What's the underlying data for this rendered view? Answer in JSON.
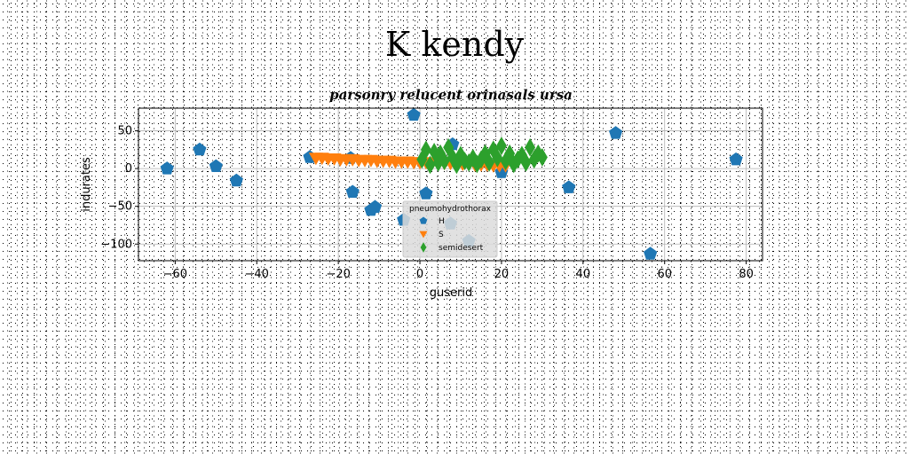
{
  "page": {
    "title": "K kendy"
  },
  "chart_data": {
    "type": "scatter",
    "title": "parsonry relucent orinasals ursa",
    "xlabel": "guserid",
    "ylabel": "indurates",
    "xlim": [
      -69,
      84
    ],
    "ylim": [
      -122,
      80
    ],
    "xticks": [
      -60,
      -40,
      -20,
      0,
      20,
      40,
      60,
      80
    ],
    "yticks": [
      50,
      0,
      -50,
      -100
    ],
    "grid": true,
    "legend": {
      "title": "pneumohydrothorax",
      "placement": "lower-center"
    },
    "series": [
      {
        "name": "H",
        "marker": "pentagon",
        "color": "#1f77b4",
        "x": [
          -62,
          -54,
          -50,
          -45,
          -27,
          -17,
          -16.5,
          -12,
          -11,
          -4,
          -1.5,
          1.5,
          7.5,
          8,
          12,
          20,
          36.5,
          48,
          56.5,
          77.5
        ],
        "y": [
          0,
          25,
          3,
          -16,
          15,
          14,
          -31,
          -55,
          -51,
          -68,
          71,
          -33,
          -73,
          32,
          -96,
          -5,
          -25,
          47,
          -113,
          12
        ]
      },
      {
        "name": "S",
        "marker": "triangle-down",
        "color": "#ff7f0e",
        "x": [
          -25.5,
          -24,
          -22.5,
          -21,
          -19.5,
          -18,
          -16.5,
          -15,
          -13.5,
          -12,
          -10.5,
          -9,
          -7.5,
          -6,
          -4.5,
          -3,
          -1.5,
          0,
          1.5,
          3,
          4.5,
          6,
          7.5,
          9,
          10.5,
          12,
          13.5,
          15,
          16.5,
          18,
          19.5,
          21
        ],
        "y": [
          14,
          14,
          13,
          13,
          12,
          12,
          12,
          11,
          11,
          11,
          10,
          10,
          10,
          9,
          9,
          9,
          8,
          8,
          8,
          7,
          7,
          7,
          7,
          6,
          6,
          6,
          5,
          5,
          5,
          4,
          4,
          4
        ]
      },
      {
        "name": "semidesert",
        "marker": "diamond",
        "color": "#2ca02c",
        "x": [
          0.5,
          1.5,
          2.5,
          3.5,
          4.5,
          5,
          6,
          7,
          8,
          9,
          10,
          11,
          12,
          13,
          14,
          15,
          16,
          17,
          18,
          19,
          20,
          21,
          22,
          23,
          24,
          25,
          26,
          27,
          28,
          29,
          30
        ],
        "y": [
          12,
          25,
          5,
          22,
          8,
          20,
          10,
          28,
          15,
          5,
          18,
          10,
          8,
          14,
          6,
          12,
          20,
          8,
          25,
          14,
          30,
          10,
          20,
          6,
          12,
          18,
          8,
          28,
          12,
          20,
          15
        ]
      }
    ]
  }
}
